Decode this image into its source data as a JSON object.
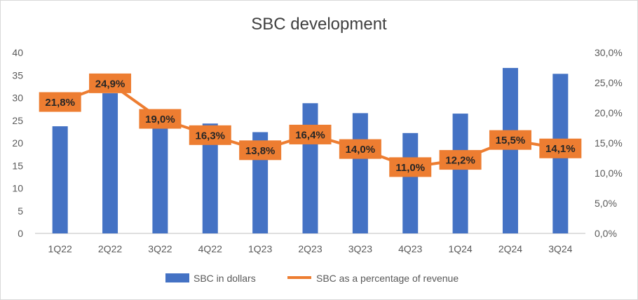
{
  "chart_data": {
    "type": "bar",
    "title": "SBC development",
    "categories": [
      "1Q22",
      "2Q22",
      "3Q22",
      "4Q22",
      "1Q23",
      "2Q23",
      "3Q23",
      "4Q23",
      "1Q24",
      "2Q24",
      "3Q24"
    ],
    "series": [
      {
        "name": "SBC in dollars",
        "type": "bar",
        "axis": "left",
        "color": "#4472C4",
        "values": [
          23.7,
          31.0,
          24.5,
          24.3,
          22.4,
          28.8,
          26.6,
          22.2,
          26.5,
          36.6,
          35.3
        ]
      },
      {
        "name": "SBC as a percentage of revenue",
        "type": "line",
        "axis": "right",
        "color": "#ED7D31",
        "values": [
          21.8,
          24.9,
          19.0,
          16.3,
          13.8,
          16.4,
          14.0,
          11.0,
          12.2,
          15.5,
          14.1
        ],
        "labels": [
          "21,8%",
          "24,9%",
          "19,0%",
          "16,3%",
          "13,8%",
          "16,4%",
          "14,0%",
          "11,0%",
          "12,2%",
          "15,5%",
          "14,1%"
        ]
      }
    ],
    "y_left": {
      "min": 0,
      "max": 40,
      "ticks": [
        "0",
        "5",
        "10",
        "15",
        "20",
        "25",
        "30",
        "35",
        "40"
      ]
    },
    "y_right": {
      "min": 0,
      "max": 30,
      "ticks": [
        "0,0%",
        "5,0%",
        "10,0%",
        "15,0%",
        "20,0%",
        "25,0%",
        "30,0%"
      ]
    },
    "legend_position": "bottom",
    "grid": false
  }
}
